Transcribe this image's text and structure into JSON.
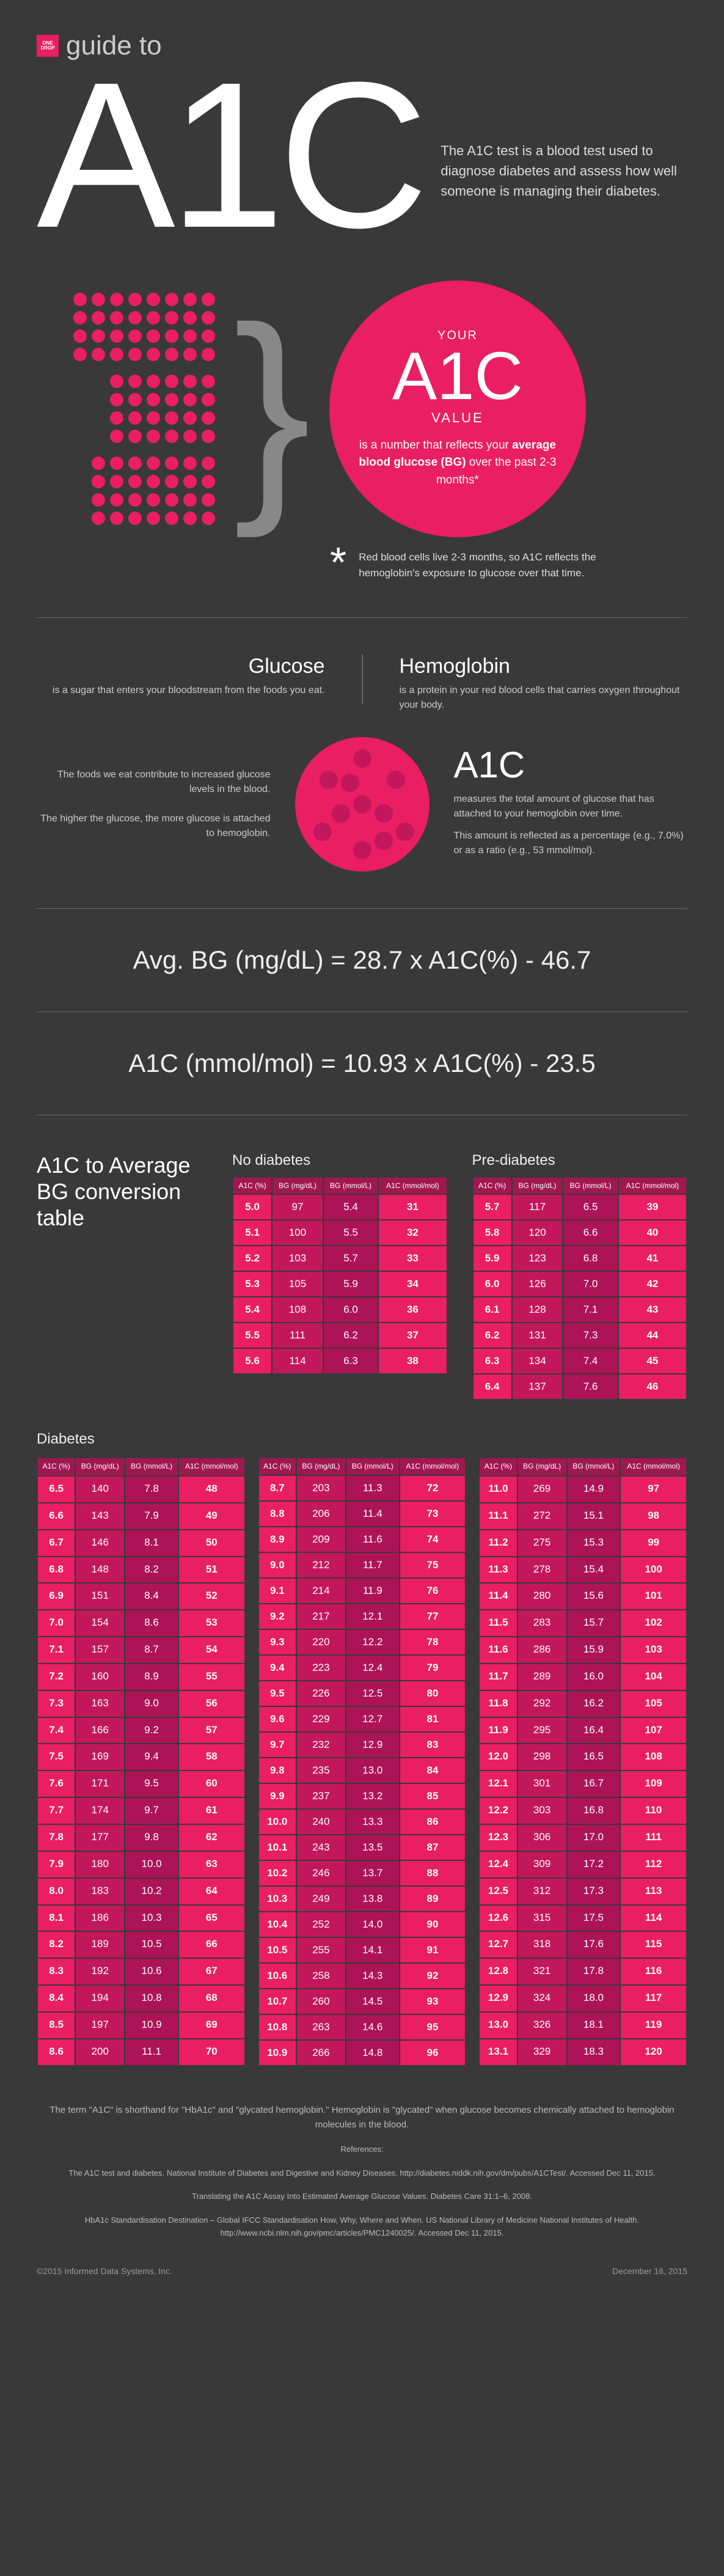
{
  "logo": {
    "text": "ONE DROP"
  },
  "guide_to": "guide to",
  "big_title": "A1C",
  "hero_desc": "The A1C test is a blood test used to diagnose diabetes and assess how well someone is managing their diabetes.",
  "circle": {
    "your": "YOUR",
    "a1c": "A1C",
    "value": "VALUE",
    "reflects": "is a number that reflects your <b>average blood glucose (BG)</b> over the past 2-3 months*"
  },
  "asterisk": "Red blood cells live 2-3 months, so A1C reflects the hemoglobin's exposure to glucose over that time.",
  "glucose": {
    "h": "Glucose",
    "p": "is a sugar that enters your bloodstream from the foods you eat."
  },
  "hemo": {
    "h": "Hemoglobin",
    "p": "is a protein in your red blood cells that carries oxygen throughout your body."
  },
  "cell_left": {
    "p1": "The foods we eat contribute to increased glucose levels in the blood.",
    "p2": "The higher the glucose, the more glucose is attached to hemoglobin."
  },
  "cell_right": {
    "h": "A1C",
    "p1": "measures the total amount of glucose that has attached to your hemoglobin over time.",
    "p2": "This amount is reflected as a percentage (e.g., 7.0%) or as a ratio (e.g., 53 mmol/mol)."
  },
  "formula1": "Avg. BG (mg/dL) = 28.7 x A1C(%) - 46.7",
  "formula2": "A1C (mmol/mol) = 10.93 x A1C(%) - 23.5",
  "conv_title": "A1C to Average BG conversion table",
  "headers": [
    "A1C (%)",
    "BG (mg/dL)",
    "BG (mmol/L)",
    "A1C (mmol/mol)"
  ],
  "no_diab": {
    "label": "No diabetes",
    "rows": [
      [
        "5.0",
        "97",
        "5.4",
        "31"
      ],
      [
        "5.1",
        "100",
        "5.5",
        "32"
      ],
      [
        "5.2",
        "103",
        "5.7",
        "33"
      ],
      [
        "5.3",
        "105",
        "5.9",
        "34"
      ],
      [
        "5.4",
        "108",
        "6.0",
        "36"
      ],
      [
        "5.5",
        "111",
        "6.2",
        "37"
      ],
      [
        "5.6",
        "114",
        "6.3",
        "38"
      ]
    ]
  },
  "pre_diab": {
    "label": "Pre-diabetes",
    "rows": [
      [
        "5.7",
        "117",
        "6.5",
        "39"
      ],
      [
        "5.8",
        "120",
        "6.6",
        "40"
      ],
      [
        "5.9",
        "123",
        "6.8",
        "41"
      ],
      [
        "6.0",
        "126",
        "7.0",
        "42"
      ],
      [
        "6.1",
        "128",
        "7.1",
        "43"
      ],
      [
        "6.2",
        "131",
        "7.3",
        "44"
      ],
      [
        "6.3",
        "134",
        "7.4",
        "45"
      ],
      [
        "6.4",
        "137",
        "7.6",
        "46"
      ]
    ]
  },
  "diab": {
    "label": "Diabetes",
    "col1": [
      [
        "6.5",
        "140",
        "7.8",
        "48"
      ],
      [
        "6.6",
        "143",
        "7.9",
        "49"
      ],
      [
        "6.7",
        "146",
        "8.1",
        "50"
      ],
      [
        "6.8",
        "148",
        "8.2",
        "51"
      ],
      [
        "6.9",
        "151",
        "8.4",
        "52"
      ],
      [
        "7.0",
        "154",
        "8.6",
        "53"
      ],
      [
        "7.1",
        "157",
        "8.7",
        "54"
      ],
      [
        "7.2",
        "160",
        "8.9",
        "55"
      ],
      [
        "7.3",
        "163",
        "9.0",
        "56"
      ],
      [
        "7.4",
        "166",
        "9.2",
        "57"
      ],
      [
        "7.5",
        "169",
        "9.4",
        "58"
      ],
      [
        "7.6",
        "171",
        "9.5",
        "60"
      ],
      [
        "7.7",
        "174",
        "9.7",
        "61"
      ],
      [
        "7.8",
        "177",
        "9.8",
        "62"
      ],
      [
        "7.9",
        "180",
        "10.0",
        "63"
      ],
      [
        "8.0",
        "183",
        "10.2",
        "64"
      ],
      [
        "8.1",
        "186",
        "10.3",
        "65"
      ],
      [
        "8.2",
        "189",
        "10.5",
        "66"
      ],
      [
        "8.3",
        "192",
        "10.6",
        "67"
      ],
      [
        "8.4",
        "194",
        "10.8",
        "68"
      ],
      [
        "8.5",
        "197",
        "10.9",
        "69"
      ],
      [
        "8.6",
        "200",
        "11.1",
        "70"
      ]
    ],
    "col2": [
      [
        "8.7",
        "203",
        "11.3",
        "72"
      ],
      [
        "8.8",
        "206",
        "11.4",
        "73"
      ],
      [
        "8.9",
        "209",
        "11.6",
        "74"
      ],
      [
        "9.0",
        "212",
        "11.7",
        "75"
      ],
      [
        "9.1",
        "214",
        "11.9",
        "76"
      ],
      [
        "9.2",
        "217",
        "12.1",
        "77"
      ],
      [
        "9.3",
        "220",
        "12.2",
        "78"
      ],
      [
        "9.4",
        "223",
        "12.4",
        "79"
      ],
      [
        "9.5",
        "226",
        "12.5",
        "80"
      ],
      [
        "9.6",
        "229",
        "12.7",
        "81"
      ],
      [
        "9.7",
        "232",
        "12.9",
        "83"
      ],
      [
        "9.8",
        "235",
        "13.0",
        "84"
      ],
      [
        "9.9",
        "237",
        "13.2",
        "85"
      ],
      [
        "10.0",
        "240",
        "13.3",
        "86"
      ],
      [
        "10.1",
        "243",
        "13.5",
        "87"
      ],
      [
        "10.2",
        "246",
        "13.7",
        "88"
      ],
      [
        "10.3",
        "249",
        "13.8",
        "89"
      ],
      [
        "10.4",
        "252",
        "14.0",
        "90"
      ],
      [
        "10.5",
        "255",
        "14.1",
        "91"
      ],
      [
        "10.6",
        "258",
        "14.3",
        "92"
      ],
      [
        "10.7",
        "260",
        "14.5",
        "93"
      ],
      [
        "10.8",
        "263",
        "14.6",
        "95"
      ],
      [
        "10.9",
        "266",
        "14.8",
        "96"
      ]
    ],
    "col3": [
      [
        "11.0",
        "269",
        "14.9",
        "97"
      ],
      [
        "11.1",
        "272",
        "15.1",
        "98"
      ],
      [
        "11.2",
        "275",
        "15.3",
        "99"
      ],
      [
        "11.3",
        "278",
        "15.4",
        "100"
      ],
      [
        "11.4",
        "280",
        "15.6",
        "101"
      ],
      [
        "11.5",
        "283",
        "15.7",
        "102"
      ],
      [
        "11.6",
        "286",
        "15.9",
        "103"
      ],
      [
        "11.7",
        "289",
        "16.0",
        "104"
      ],
      [
        "11.8",
        "292",
        "16.2",
        "105"
      ],
      [
        "11.9",
        "295",
        "16.4",
        "107"
      ],
      [
        "12.0",
        "298",
        "16.5",
        "108"
      ],
      [
        "12.1",
        "301",
        "16.7",
        "109"
      ],
      [
        "12.2",
        "303",
        "16.8",
        "110"
      ],
      [
        "12.3",
        "306",
        "17.0",
        "111"
      ],
      [
        "12.4",
        "309",
        "17.2",
        "112"
      ],
      [
        "12.5",
        "312",
        "17.3",
        "113"
      ],
      [
        "12.6",
        "315",
        "17.5",
        "114"
      ],
      [
        "12.7",
        "318",
        "17.6",
        "115"
      ],
      [
        "12.8",
        "321",
        "17.8",
        "116"
      ],
      [
        "12.9",
        "324",
        "18.0",
        "117"
      ],
      [
        "13.0",
        "326",
        "18.1",
        "119"
      ],
      [
        "13.1",
        "329",
        "18.3",
        "120"
      ]
    ]
  },
  "footer": {
    "term": "The term \"A1C\" is shorthand for \"HbA1c\" and \"glycated hemoglobin.\" Hemoglobin is \"glycated\" when glucose becomes chemically attached to hemoglobin molecules in the blood.",
    "refs_label": "References:",
    "ref1": "The A1C test and diabetes. National Institute of Diabetes and Digestive and Kidney Diseases. http://diabetes.niddk.nih.gov/dm/pubs/A1CTest/. Accessed Dec 11, 2015.",
    "ref2": "Translating the A1C Assay Into Estimated Average Glucose Values. Diabetes Care 31:1–6, 2008.",
    "ref3": "HbA1c Standardisation Destination – Global IFCC Standardisation How, Why, Where and When. US National Library of Medicine National Institutes of Health. http://www.ncbi.nlm.nih.gov/pmc/articles/PMC1240025/. Accessed Dec 11, 2015.",
    "copyright": "©2015 Informed Data Systems, Inc.",
    "date": "December 16, 2015"
  }
}
